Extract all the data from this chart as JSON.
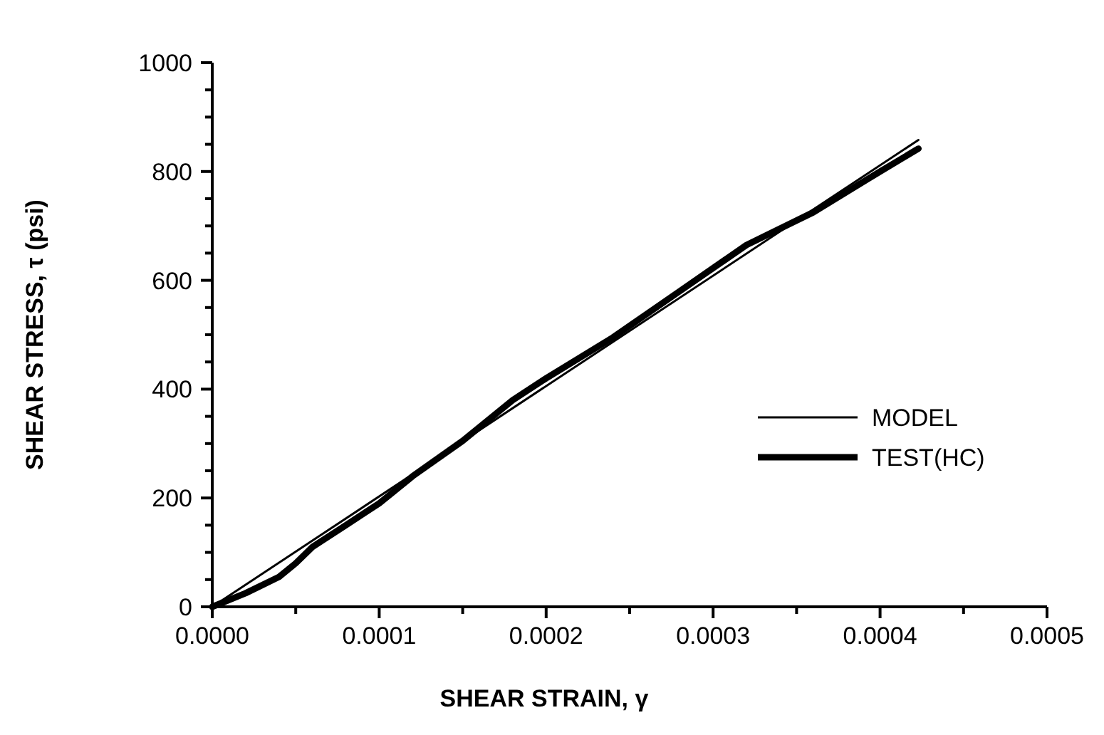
{
  "chart_data": {
    "type": "line",
    "xlabel": "SHEAR STRAIN,    γ",
    "ylabel": "SHEAR  STRESS, τ (psi)",
    "xlim": [
      0,
      0.0005
    ],
    "xticks": [
      {
        "value": 0,
        "label": "0.0000"
      },
      {
        "value": 5e-05,
        "label": null
      },
      {
        "value": 0.0001,
        "label": "0.0001"
      },
      {
        "value": 0.00015,
        "label": null
      },
      {
        "value": 0.0002,
        "label": "0.0002"
      },
      {
        "value": 0.00025,
        "label": null
      },
      {
        "value": 0.0003,
        "label": "0.0003"
      },
      {
        "value": 0.00035,
        "label": null
      },
      {
        "value": 0.0004,
        "label": "0.0004"
      },
      {
        "value": 0.00045,
        "label": null
      },
      {
        "value": 0.0005,
        "label": "0.0005"
      }
    ],
    "ylim": [
      0,
      1000
    ],
    "yticks": [
      0,
      {
        "value": 50,
        "label": null
      },
      {
        "value": 100,
        "label": null
      },
      {
        "value": 150,
        "label": null
      },
      200,
      {
        "value": 250,
        "label": null
      },
      {
        "value": 300,
        "label": null
      },
      {
        "value": 350,
        "label": null
      },
      400,
      {
        "value": 450,
        "label": null
      },
      {
        "value": 500,
        "label": null
      },
      {
        "value": 550,
        "label": null
      },
      600,
      {
        "value": 650,
        "label": null
      },
      {
        "value": 700,
        "label": null
      },
      {
        "value": 750,
        "label": null
      },
      800,
      {
        "value": 850,
        "label": null
      },
      {
        "value": 900,
        "label": null
      },
      {
        "value": 950,
        "label": null
      },
      1000
    ],
    "grid": false,
    "legend": "right",
    "series": [
      {
        "name": "MODEL",
        "color": "#000000",
        "x": [
          0,
          0.000423
        ],
        "values": [
          0,
          858
        ]
      },
      {
        "name": "TEST(HC)",
        "color": "#000000",
        "x": [
          0,
          2e-05,
          4e-05,
          5e-05,
          6e-05,
          8e-05,
          0.0001,
          0.00012,
          0.00015,
          0.00018,
          0.0002,
          0.00024,
          0.00028,
          0.00032,
          0.00036,
          0.0004,
          0.000423
        ],
        "values": [
          0,
          25,
          55,
          80,
          110,
          150,
          190,
          240,
          305,
          380,
          420,
          495,
          580,
          665,
          725,
          800,
          842
        ]
      }
    ]
  }
}
